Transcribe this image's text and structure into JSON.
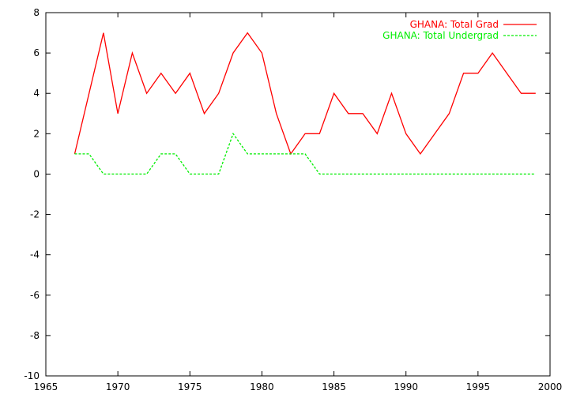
{
  "chart_data": {
    "type": "line",
    "title": "",
    "xlabel": "",
    "ylabel": "",
    "xlim": [
      1965,
      2000
    ],
    "ylim": [
      -10,
      8
    ],
    "xticks": [
      1965,
      1970,
      1975,
      1980,
      1985,
      1990,
      1995,
      2000
    ],
    "yticks": [
      -10,
      -8,
      -6,
      -4,
      -2,
      0,
      2,
      4,
      6,
      8
    ],
    "grid": false,
    "legend_position": "top-right",
    "series": [
      {
        "name": "GHANA: Total Grad",
        "color": "#ff0000",
        "style": "solid",
        "x": [
          1967,
          1968,
          1969,
          1970,
          1971,
          1972,
          1973,
          1974,
          1975,
          1976,
          1977,
          1978,
          1979,
          1980,
          1981,
          1982,
          1983,
          1984,
          1985,
          1986,
          1987,
          1988,
          1989,
          1990,
          1991,
          1992,
          1993,
          1994,
          1995,
          1996,
          1997,
          1998,
          1999
        ],
        "y": [
          1,
          4,
          7,
          3,
          6,
          4,
          5,
          4,
          5,
          3,
          4,
          6,
          7,
          6,
          3,
          1,
          2,
          2,
          4,
          3,
          3,
          2,
          4,
          2,
          1,
          2,
          3,
          5,
          5,
          6,
          5,
          4,
          4
        ]
      },
      {
        "name": "GHANA: Total Undergrad",
        "color": "#00ee00",
        "style": "dashed",
        "x": [
          1967,
          1968,
          1969,
          1970,
          1971,
          1972,
          1973,
          1974,
          1975,
          1976,
          1977,
          1978,
          1979,
          1980,
          1981,
          1982,
          1983,
          1984,
          1985,
          1986,
          1987,
          1988,
          1989,
          1990,
          1991,
          1992,
          1993,
          1994,
          1995,
          1996,
          1997,
          1998,
          1999
        ],
        "y": [
          1,
          1,
          0,
          0,
          0,
          0,
          1,
          1,
          0,
          0,
          0,
          2,
          1,
          1,
          1,
          1,
          1,
          0,
          0,
          0,
          0,
          0,
          0,
          0,
          0,
          0,
          0,
          0,
          0,
          0,
          0,
          0,
          0
        ]
      }
    ]
  }
}
